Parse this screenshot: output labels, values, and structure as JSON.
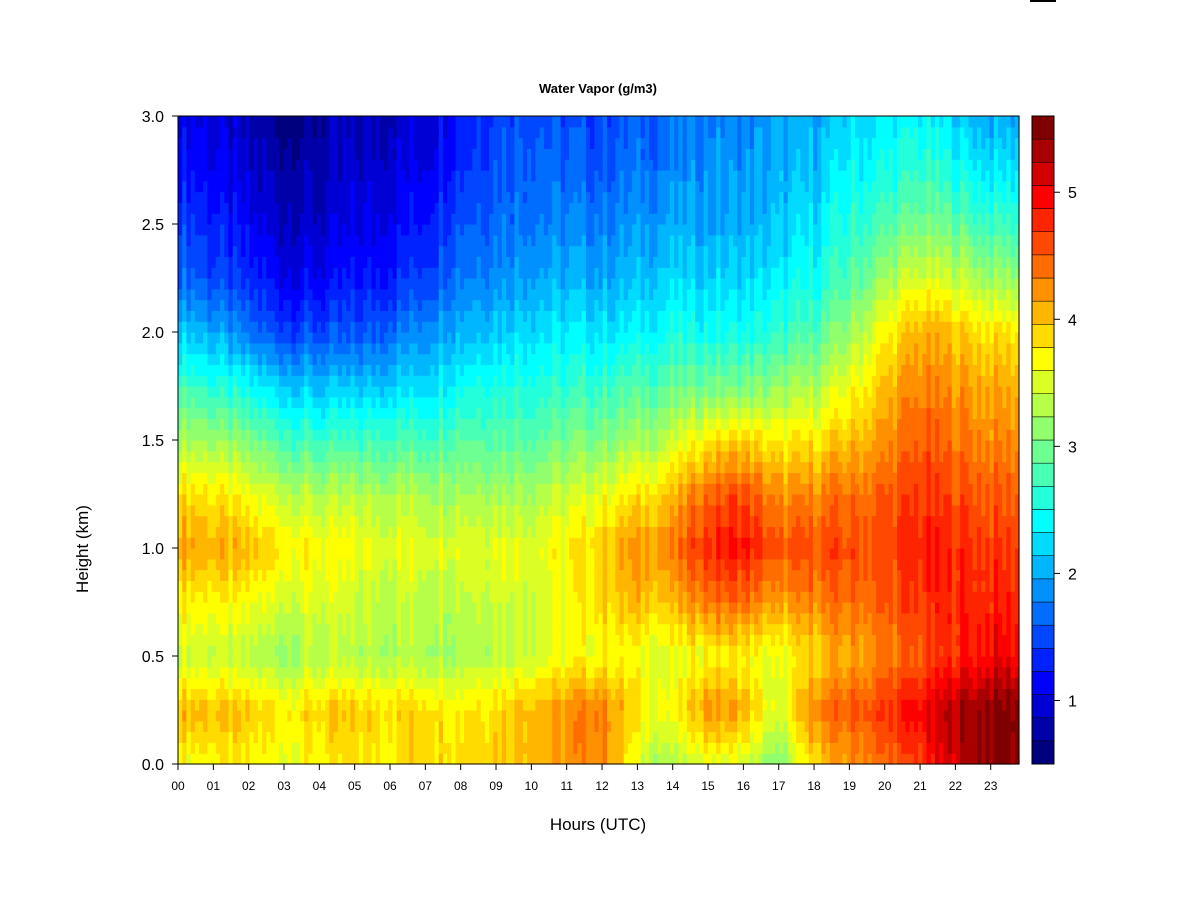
{
  "chart_data": {
    "type": "heatmap",
    "title": "Water Vapor (g/m3)",
    "xlabel": "Hours (UTC)",
    "ylabel": "Height (km)",
    "xlim": [
      0,
      23.8
    ],
    "ylim": [
      0.0,
      3.0
    ],
    "x_ticks": [
      "00",
      "01",
      "02",
      "03",
      "04",
      "05",
      "06",
      "07",
      "08",
      "09",
      "10",
      "11",
      "12",
      "13",
      "14",
      "15",
      "16",
      "17",
      "18",
      "19",
      "20",
      "21",
      "22",
      "23"
    ],
    "y_ticks": [
      "0.0",
      "0.5",
      "1.0",
      "1.5",
      "2.0",
      "2.5",
      "3.0"
    ],
    "grid": false,
    "colorbar": {
      "min": 0.5,
      "max": 5.6,
      "levels": 25,
      "ticks": [
        "1",
        "2",
        "3",
        "4",
        "5"
      ],
      "colors": [
        "#00007f",
        "#0000a8",
        "#0000d4",
        "#0000ff",
        "#0022ff",
        "#0047ff",
        "#006dff",
        "#0091ff",
        "#00b6ff",
        "#00dbff",
        "#00ffff",
        "#24ffdb",
        "#49ffb6",
        "#6dff91",
        "#91ff6d",
        "#b6ff49",
        "#dbff24",
        "#ffff00",
        "#ffdb00",
        "#ffb600",
        "#ff9100",
        "#ff6d00",
        "#ff4800",
        "#ff2400",
        "#ff0000",
        "#d40000",
        "#a80000",
        "#7f0000"
      ]
    },
    "profile_heights_km": [
      0.0,
      0.25,
      0.5,
      0.75,
      1.0,
      1.25,
      1.5,
      1.75,
      2.0,
      2.25,
      2.5,
      2.75,
      3.0
    ],
    "profiles": [
      {
        "hour": 0,
        "values": [
          3.7,
          4.1,
          3.5,
          3.8,
          4.2,
          3.9,
          3.3,
          2.8,
          2.2,
          1.7,
          1.5,
          1.3,
          1.1
        ]
      },
      {
        "hour": 1,
        "values": [
          3.7,
          4.0,
          3.4,
          3.7,
          4.1,
          3.8,
          3.2,
          2.6,
          2.0,
          1.5,
          1.3,
          1.1,
          1.0
        ]
      },
      {
        "hour": 2,
        "values": [
          3.7,
          3.9,
          3.3,
          3.6,
          4.0,
          3.6,
          3.0,
          2.4,
          1.7,
          1.3,
          1.1,
          0.9,
          0.8
        ]
      },
      {
        "hour": 3,
        "values": [
          3.6,
          3.8,
          3.2,
          3.5,
          3.8,
          3.4,
          2.8,
          2.2,
          1.5,
          1.1,
          0.9,
          0.8,
          0.6
        ]
      },
      {
        "hour": 4,
        "values": [
          3.7,
          3.9,
          3.3,
          3.5,
          3.7,
          3.3,
          2.7,
          2.1,
          1.5,
          1.1,
          0.9,
          0.8,
          0.7
        ]
      },
      {
        "hour": 5,
        "values": [
          3.8,
          3.9,
          3.3,
          3.4,
          3.6,
          3.3,
          2.7,
          2.1,
          1.5,
          1.2,
          1.0,
          0.9,
          0.8
        ]
      },
      {
        "hour": 6,
        "values": [
          3.8,
          3.9,
          3.3,
          3.4,
          3.6,
          3.3,
          2.8,
          2.2,
          1.7,
          1.3,
          1.1,
          1.0,
          0.9
        ]
      },
      {
        "hour": 7,
        "values": [
          3.9,
          3.9,
          3.3,
          3.4,
          3.6,
          3.3,
          2.8,
          2.3,
          1.9,
          1.5,
          1.3,
          1.1,
          1.0
        ]
      },
      {
        "hour": 8,
        "values": [
          3.9,
          3.8,
          3.3,
          3.4,
          3.6,
          3.3,
          2.9,
          2.5,
          2.1,
          1.8,
          1.6,
          1.4,
          1.3
        ]
      },
      {
        "hour": 9,
        "values": [
          4.0,
          3.9,
          3.4,
          3.5,
          3.6,
          3.3,
          2.9,
          2.6,
          2.2,
          1.9,
          1.7,
          1.6,
          1.5
        ]
      },
      {
        "hour": 10,
        "values": [
          4.1,
          4.1,
          3.5,
          3.5,
          3.6,
          3.3,
          2.9,
          2.6,
          2.3,
          2.0,
          1.8,
          1.7,
          1.6
        ]
      },
      {
        "hour": 11,
        "values": [
          4.2,
          4.2,
          3.6,
          3.6,
          3.7,
          3.4,
          3.0,
          2.6,
          2.3,
          2.0,
          1.8,
          1.6,
          1.5
        ]
      },
      {
        "hour": 12,
        "values": [
          4.3,
          4.4,
          3.7,
          3.9,
          4.0,
          3.6,
          3.1,
          2.7,
          2.3,
          2.0,
          1.8,
          1.6,
          1.5
        ]
      },
      {
        "hour": 13,
        "values": [
          3.5,
          3.8,
          3.6,
          4.0,
          4.2,
          3.8,
          3.2,
          2.8,
          2.4,
          2.1,
          1.9,
          1.7,
          1.6
        ]
      },
      {
        "hour": 14,
        "values": [
          3.2,
          3.6,
          3.5,
          4.0,
          4.3,
          4.0,
          3.4,
          2.9,
          2.5,
          2.2,
          2.0,
          1.8,
          1.7
        ]
      },
      {
        "hour": 15,
        "values": [
          3.6,
          4.3,
          3.7,
          4.4,
          4.8,
          4.5,
          3.8,
          3.0,
          2.5,
          2.2,
          2.0,
          1.9,
          1.8
        ]
      },
      {
        "hour": 16,
        "values": [
          3.5,
          4.1,
          3.7,
          4.4,
          4.9,
          4.6,
          3.9,
          3.0,
          2.5,
          2.2,
          2.0,
          1.9,
          1.8
        ]
      },
      {
        "hour": 17,
        "values": [
          3.0,
          3.4,
          3.5,
          4.1,
          4.5,
          4.2,
          3.7,
          3.1,
          2.6,
          2.3,
          2.1,
          2.0,
          1.9
        ]
      },
      {
        "hour": 18,
        "values": [
          3.9,
          4.3,
          3.9,
          4.3,
          4.6,
          4.3,
          3.8,
          3.3,
          2.8,
          2.5,
          2.3,
          2.1,
          2.0
        ]
      },
      {
        "hour": 19,
        "values": [
          4.2,
          4.5,
          4.1,
          4.4,
          4.6,
          4.4,
          4.0,
          3.6,
          3.2,
          2.8,
          2.6,
          2.4,
          2.2
        ]
      },
      {
        "hour": 20,
        "values": [
          4.4,
          4.7,
          4.3,
          4.5,
          4.6,
          4.5,
          4.2,
          4.0,
          3.7,
          3.2,
          2.8,
          2.5,
          2.3
        ]
      },
      {
        "hour": 21,
        "values": [
          4.7,
          5.0,
          4.5,
          4.7,
          4.8,
          4.7,
          4.5,
          4.3,
          4.1,
          3.5,
          3.0,
          2.7,
          2.4
        ]
      },
      {
        "hour": 22,
        "values": [
          5.2,
          5.3,
          4.8,
          4.8,
          4.8,
          4.6,
          4.4,
          4.2,
          4.0,
          3.4,
          2.9,
          2.5,
          2.2
        ]
      },
      {
        "hour": 23,
        "values": [
          5.5,
          5.5,
          5.0,
          4.8,
          4.7,
          4.5,
          4.3,
          4.1,
          3.8,
          3.2,
          2.7,
          2.3,
          2.0
        ]
      }
    ]
  }
}
